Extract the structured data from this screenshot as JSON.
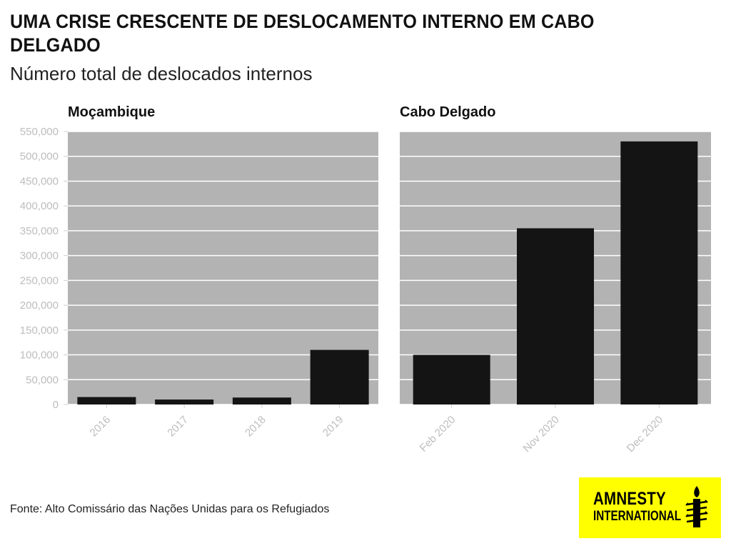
{
  "header": {
    "title": "UMA CRISE CRESCENTE DE DESLOCAMENTO INTERNO EM CABO DELGADO",
    "subtitle": "Número total de deslocados internos"
  },
  "source": "Fonte: Alto Comissário das Nações Unidas para os Refugiados",
  "logo": {
    "line1": "AMNESTY",
    "line2": "INTERNATIONAL",
    "icon": "candle-barbed-wire-icon",
    "color": "#ffff00"
  },
  "colors": {
    "plot_bg": "#b3b3b3",
    "bar": "#141414",
    "grid": "#ffffff",
    "tick_label": "#bdbdbd"
  },
  "chart_data": [
    {
      "type": "bar",
      "title": "Moçambique",
      "categories": [
        "2016",
        "2017",
        "2018",
        "2019"
      ],
      "values": [
        15000,
        10000,
        14000,
        110000
      ],
      "ylim": [
        0,
        550000
      ],
      "yticks": [
        0,
        50000,
        100000,
        150000,
        200000,
        250000,
        300000,
        350000,
        400000,
        450000,
        500000,
        550000
      ],
      "ytick_labels": [
        "0",
        "50,000",
        "100,000",
        "150,000",
        "200,000",
        "250,000",
        "300,000",
        "350,000",
        "400,000",
        "450,000",
        "500,000",
        "550,000"
      ],
      "grid": true
    },
    {
      "type": "bar",
      "title": "Cabo Delgado",
      "categories": [
        "Feb 2020",
        "Nov 2020",
        "Dec 2020"
      ],
      "values": [
        100000,
        355000,
        530000
      ],
      "ylim": [
        0,
        550000
      ],
      "grid": true
    }
  ]
}
